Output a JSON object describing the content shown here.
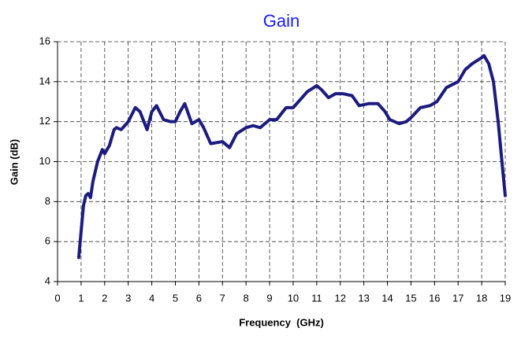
{
  "chart_data": {
    "type": "line",
    "title": "Gain",
    "x_label": "Frequency  (GHz)",
    "y_label": "Gain (dB)",
    "xlim": [
      0,
      19
    ],
    "xticks": [
      0,
      1,
      2,
      3,
      4,
      5,
      6,
      7,
      8,
      9,
      10,
      11,
      12,
      13,
      14,
      15,
      16,
      17,
      18,
      19
    ],
    "ylim": [
      4,
      16
    ],
    "yticks": [
      4,
      6,
      8,
      10,
      12,
      14,
      16
    ],
    "grid": true,
    "series": [
      {
        "color": "#1c1c80",
        "x": [
          0.9,
          1.0,
          1.1,
          1.2,
          1.3,
          1.4,
          1.5,
          1.7,
          1.9,
          2.0,
          2.2,
          2.4,
          2.5,
          2.7,
          3.0,
          3.3,
          3.5,
          3.8,
          4.0,
          4.2,
          4.5,
          4.8,
          5.0,
          5.2,
          5.4,
          5.7,
          6.0,
          6.2,
          6.5,
          7.0,
          7.3,
          7.6,
          8.0,
          8.3,
          8.6,
          9.0,
          9.3,
          9.7,
          10.0,
          10.3,
          10.6,
          11.0,
          11.2,
          11.5,
          11.8,
          12.1,
          12.5,
          12.8,
          13.2,
          13.6,
          13.9,
          14.1,
          14.5,
          14.8,
          15.0,
          15.4,
          15.8,
          16.1,
          16.5,
          17.0,
          17.3,
          17.6,
          18.0,
          18.1,
          18.3,
          18.5,
          18.7,
          18.9,
          19.0
        ],
        "values": [
          5.2,
          6.5,
          7.8,
          8.3,
          8.4,
          8.2,
          9.0,
          10.0,
          10.6,
          10.4,
          10.8,
          11.6,
          11.7,
          11.6,
          12.0,
          12.7,
          12.5,
          11.6,
          12.5,
          12.8,
          12.1,
          12.0,
          12.0,
          12.5,
          12.9,
          11.9,
          12.1,
          11.7,
          10.9,
          11.0,
          10.7,
          11.4,
          11.7,
          11.8,
          11.7,
          12.1,
          12.1,
          12.7,
          12.7,
          13.1,
          13.5,
          13.8,
          13.6,
          13.2,
          13.4,
          13.4,
          13.3,
          12.8,
          12.9,
          12.9,
          12.5,
          12.1,
          11.9,
          12.0,
          12.2,
          12.7,
          12.8,
          13.0,
          13.7,
          14.0,
          14.6,
          14.9,
          15.2,
          15.3,
          14.9,
          14.0,
          12.0,
          9.5,
          8.3
        ]
      }
    ]
  }
}
